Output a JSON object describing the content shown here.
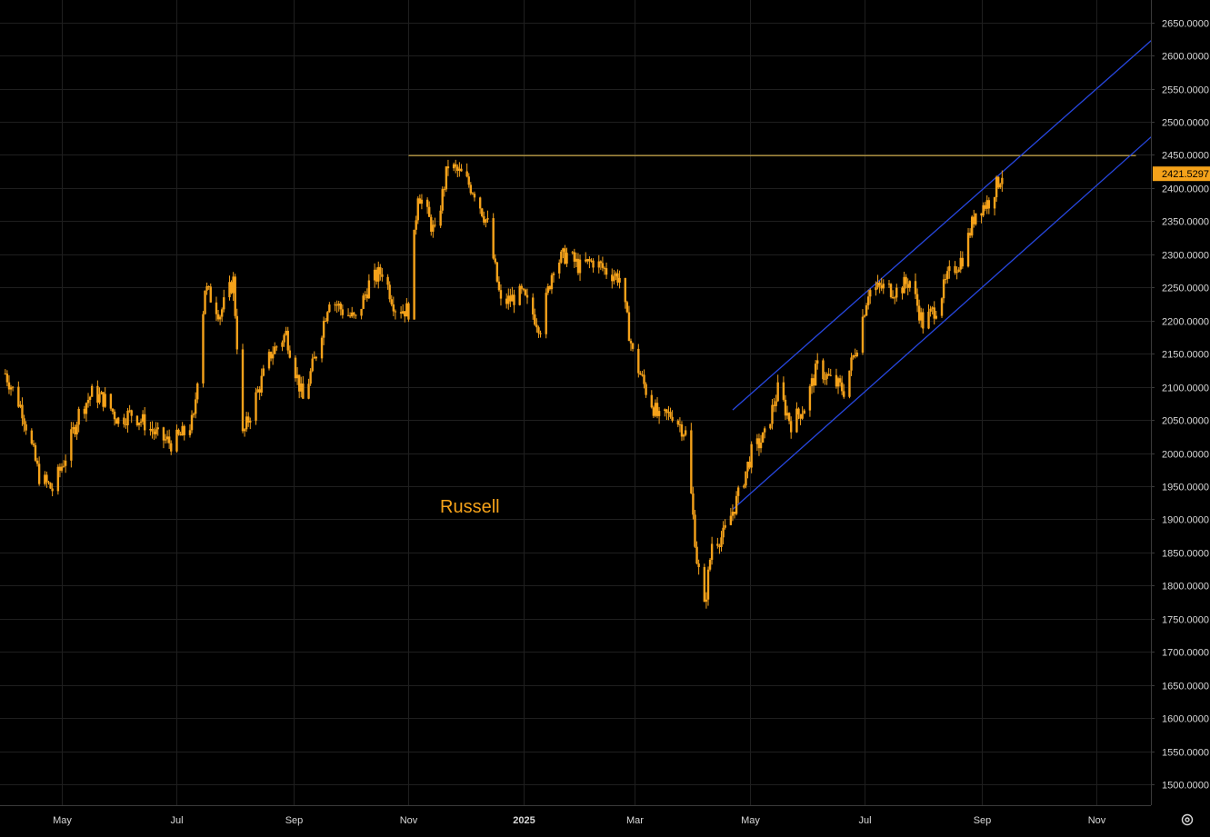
{
  "chart_data": {
    "type": "candlestick",
    "annotation": "Russell",
    "colors": {
      "background": "#000000",
      "candle": "#f5a21a",
      "grid": "#1f1f1f",
      "resistance": "#d8b34a",
      "channel": "#2747e0",
      "axis_text": "#d8d8d8"
    },
    "y_axis": {
      "range": [
        1460,
        2680
      ],
      "ticks": [
        "1500.0000",
        "1550.0000",
        "1600.0000",
        "1650.0000",
        "1700.0000",
        "1750.0000",
        "1800.0000",
        "1850.0000",
        "1900.0000",
        "1950.0000",
        "2000.0000",
        "2050.0000",
        "2100.0000",
        "2150.0000",
        "2200.0000",
        "2250.0000",
        "2300.0000",
        "2350.0000",
        "2400.0000",
        "2450.0000",
        "2500.0000",
        "2550.0000",
        "2600.0000",
        "2650.0000"
      ]
    },
    "x_axis": {
      "ticks": [
        {
          "label": "May",
          "date": "2024-05-01"
        },
        {
          "label": "Jul",
          "date": "2024-07-01"
        },
        {
          "label": "Sep",
          "date": "2024-09-01"
        },
        {
          "label": "Nov",
          "date": "2024-11-01"
        },
        {
          "label": "2025",
          "date": "2025-01-01",
          "bold": true
        },
        {
          "label": "Mar",
          "date": "2025-03-01"
        },
        {
          "label": "May",
          "date": "2025-05-01"
        },
        {
          "label": "Jul",
          "date": "2025-07-01"
        },
        {
          "label": "Sep",
          "date": "2025-09-01"
        },
        {
          "label": "Nov",
          "date": "2025-11-01"
        }
      ]
    },
    "last_price": "2421.5297",
    "series_close": [
      [
        "2024-04-01",
        2120
      ],
      [
        "2024-04-10",
        2065
      ],
      [
        "2024-04-19",
        1965
      ],
      [
        "2024-04-26",
        1945
      ],
      [
        "2024-05-03",
        1995
      ],
      [
        "2024-05-10",
        2060
      ],
      [
        "2024-05-17",
        2090
      ],
      [
        "2024-05-24",
        2080
      ],
      [
        "2024-05-31",
        2050
      ],
      [
        "2024-06-07",
        2060
      ],
      [
        "2024-06-14",
        2045
      ],
      [
        "2024-06-21",
        2025
      ],
      [
        "2024-06-28",
        2015
      ],
      [
        "2024-07-05",
        2030
      ],
      [
        "2024-07-10",
        2050
      ],
      [
        "2024-07-16",
        2250
      ],
      [
        "2024-07-24",
        2210
      ],
      [
        "2024-07-31",
        2260
      ],
      [
        "2024-08-05",
        2025
      ],
      [
        "2024-08-12",
        2085
      ],
      [
        "2024-08-20",
        2150
      ],
      [
        "2024-08-28",
        2180
      ],
      [
        "2024-09-06",
        2080
      ],
      [
        "2024-09-13",
        2150
      ],
      [
        "2024-09-20",
        2235
      ],
      [
        "2024-09-27",
        2215
      ],
      [
        "2024-10-04",
        2200
      ],
      [
        "2024-10-11",
        2255
      ],
      [
        "2024-10-18",
        2275
      ],
      [
        "2024-10-25",
        2220
      ],
      [
        "2024-11-01",
        2215
      ],
      [
        "2024-11-06",
        2395
      ],
      [
        "2024-11-15",
        2330
      ],
      [
        "2024-11-22",
        2435
      ],
      [
        "2024-11-29",
        2420
      ],
      [
        "2024-12-06",
        2395
      ],
      [
        "2024-12-13",
        2345
      ],
      [
        "2024-12-20",
        2225
      ],
      [
        "2024-12-31",
        2240
      ],
      [
        "2025-01-10",
        2190
      ],
      [
        "2025-01-17",
        2285
      ],
      [
        "2025-01-24",
        2300
      ],
      [
        "2025-01-31",
        2280
      ],
      [
        "2025-02-07",
        2290
      ],
      [
        "2025-02-14",
        2275
      ],
      [
        "2025-02-21",
        2265
      ],
      [
        "2025-02-28",
        2150
      ],
      [
        "2025-03-07",
        2095
      ],
      [
        "2025-03-14",
        2050
      ],
      [
        "2025-03-21",
        2060
      ],
      [
        "2025-03-28",
        2030
      ],
      [
        "2025-04-03",
        1840
      ],
      [
        "2025-04-07",
        1765
      ],
      [
        "2025-04-11",
        1865
      ],
      [
        "2025-04-17",
        1875
      ],
      [
        "2025-04-25",
        1935
      ],
      [
        "2025-05-02",
        2000
      ],
      [
        "2025-05-09",
        2025
      ],
      [
        "2025-05-16",
        2095
      ],
      [
        "2025-05-23",
        2045
      ],
      [
        "2025-05-30",
        2070
      ],
      [
        "2025-06-06",
        2130
      ],
      [
        "2025-06-13",
        2110
      ],
      [
        "2025-06-20",
        2095
      ],
      [
        "2025-06-27",
        2165
      ],
      [
        "2025-07-03",
        2245
      ],
      [
        "2025-07-11",
        2250
      ],
      [
        "2025-07-18",
        2245
      ],
      [
        "2025-07-25",
        2260
      ],
      [
        "2025-08-01",
        2195
      ],
      [
        "2025-08-08",
        2220
      ],
      [
        "2025-08-15",
        2270
      ],
      [
        "2025-08-22",
        2295
      ],
      [
        "2025-08-29",
        2365
      ],
      [
        "2025-09-05",
        2380
      ],
      [
        "2025-09-12",
        2421.53
      ]
    ],
    "resistance_line": {
      "value": 2449,
      "from": "2024-11-01",
      "to": "2025-11-22"
    },
    "channel_upper": {
      "from": [
        "2025-04-22",
        2065
      ],
      "to": [
        "2025-12-17",
        2665
      ]
    },
    "channel_lower": {
      "from": [
        "2025-04-22",
        1915
      ],
      "to": [
        "2025-12-17",
        2520
      ]
    }
  }
}
